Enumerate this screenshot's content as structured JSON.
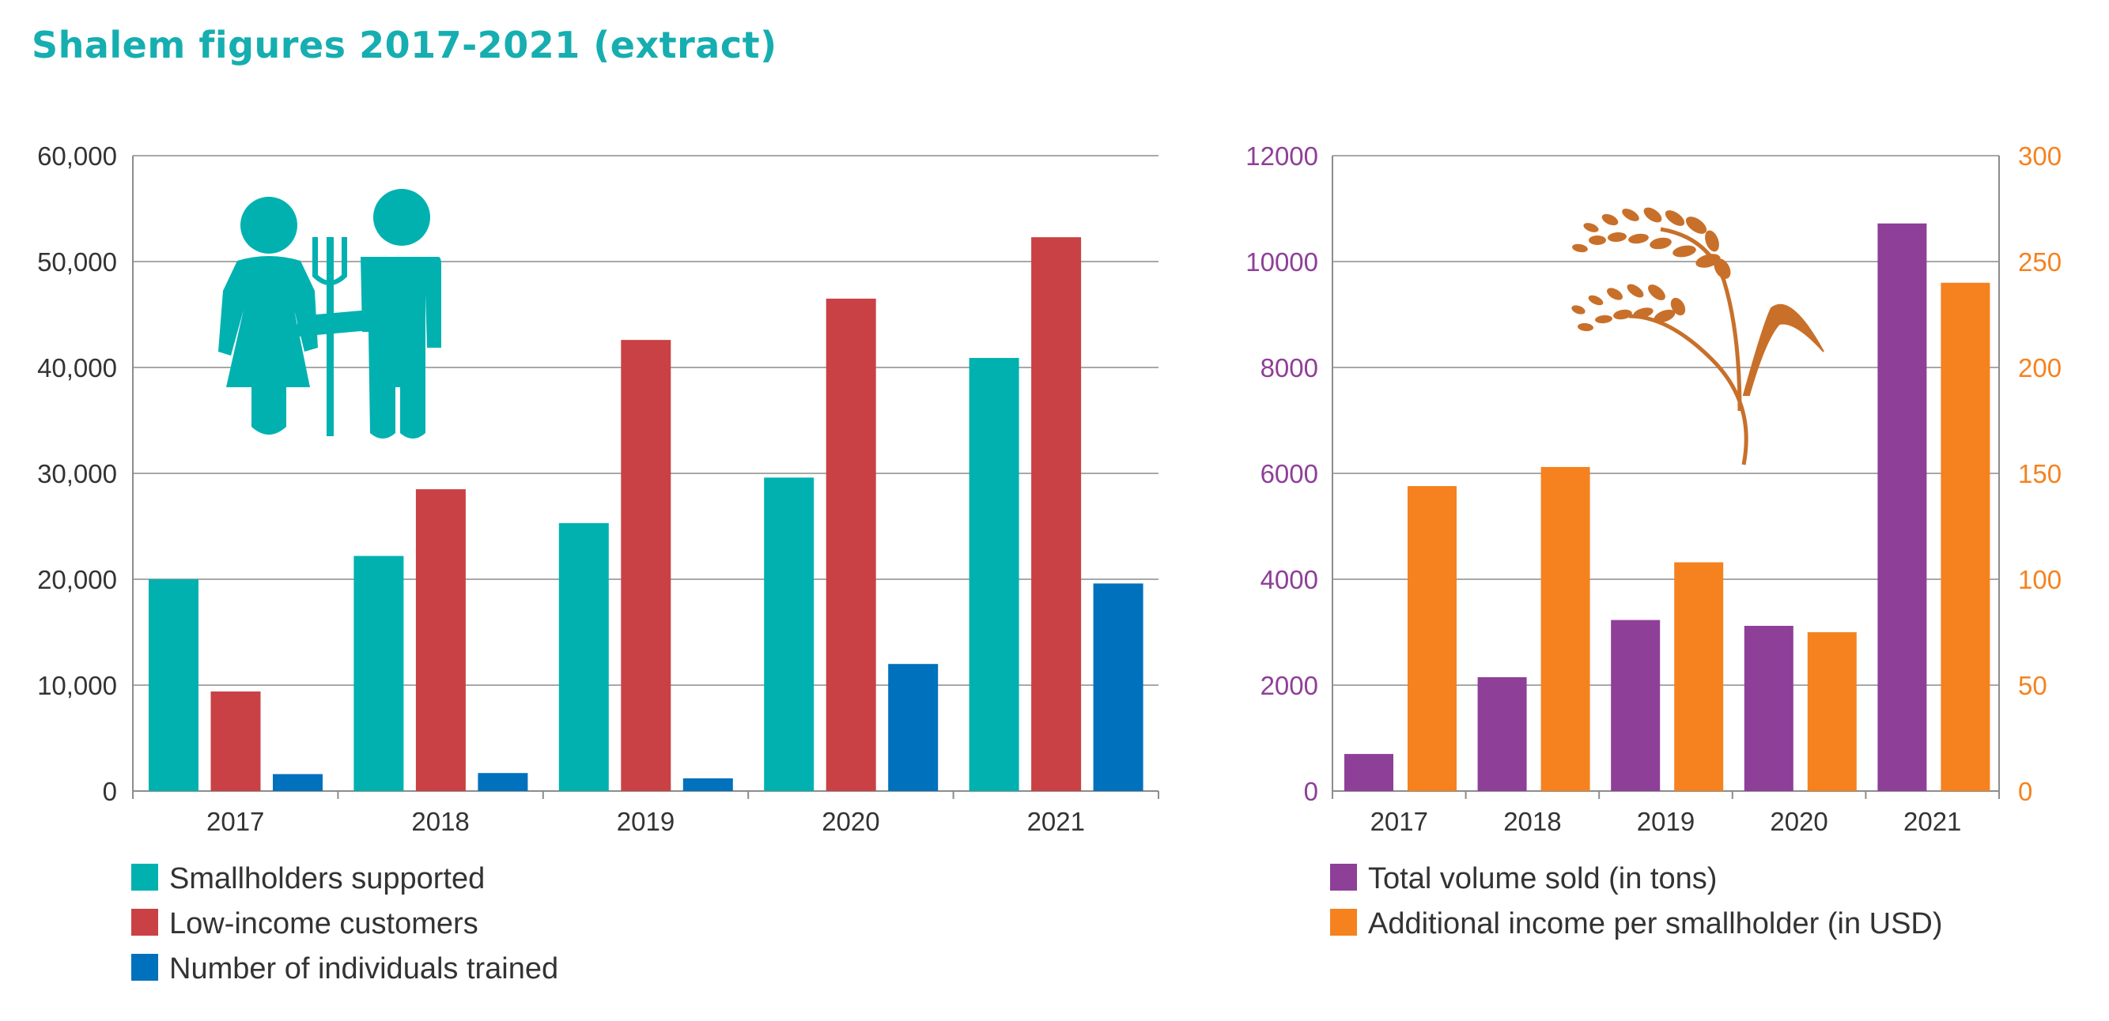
{
  "title": "Shalem figures 2017-2021 (extract)",
  "colors": {
    "title": "#16aeb0",
    "teal": "#00b1b0",
    "red": "#c94144",
    "blue": "#0071bc",
    "purple": "#8e3f98",
    "orange": "#f5821f",
    "rice_icon": "#c8702a"
  },
  "icons": {
    "left": "farmer-couple-pitchfork-icon",
    "right": "rice-stalk-icon"
  },
  "chart_data": [
    {
      "type": "bar",
      "categories": [
        "2017",
        "2018",
        "2019",
        "2020",
        "2021"
      ],
      "ylim": [
        0,
        60000
      ],
      "y_ticks": [
        "0",
        "10,000",
        "20,000",
        "30,000",
        "40,000",
        "50,000",
        "60,000"
      ],
      "grid": true,
      "legend_position": "bottom-left",
      "series": [
        {
          "name": "Smallholders supported",
          "color": "#00b1b0",
          "values": [
            20000,
            22200,
            25300,
            29600,
            40900
          ]
        },
        {
          "name": "Low-income customers",
          "color": "#c94144",
          "values": [
            9400,
            28500,
            42600,
            46500,
            52300
          ]
        },
        {
          "name": "Number of individuals trained",
          "color": "#0071bc",
          "values": [
            1600,
            1700,
            1200,
            12000,
            19600
          ]
        }
      ]
    },
    {
      "type": "bar",
      "categories": [
        "2017",
        "2018",
        "2019",
        "2020",
        "2021"
      ],
      "ylim": [
        0,
        12000
      ],
      "y_ticks": [
        "0",
        "2000",
        "4000",
        "6000",
        "8000",
        "10000",
        "12000"
      ],
      "y2lim": [
        0,
        300
      ],
      "y2_ticks": [
        "0",
        "50",
        "100",
        "150",
        "200",
        "250",
        "300"
      ],
      "grid": true,
      "legend_position": "bottom-left",
      "series": [
        {
          "name": "Total volume sold (in tons)",
          "axis": "left",
          "color": "#8e3f98",
          "values": [
            700,
            2150,
            3230,
            3120,
            10720
          ]
        },
        {
          "name": "Additional income per smallholder (in USD)",
          "axis": "right",
          "color": "#f5821f",
          "values": [
            144,
            153,
            108,
            75,
            240
          ]
        }
      ]
    }
  ]
}
